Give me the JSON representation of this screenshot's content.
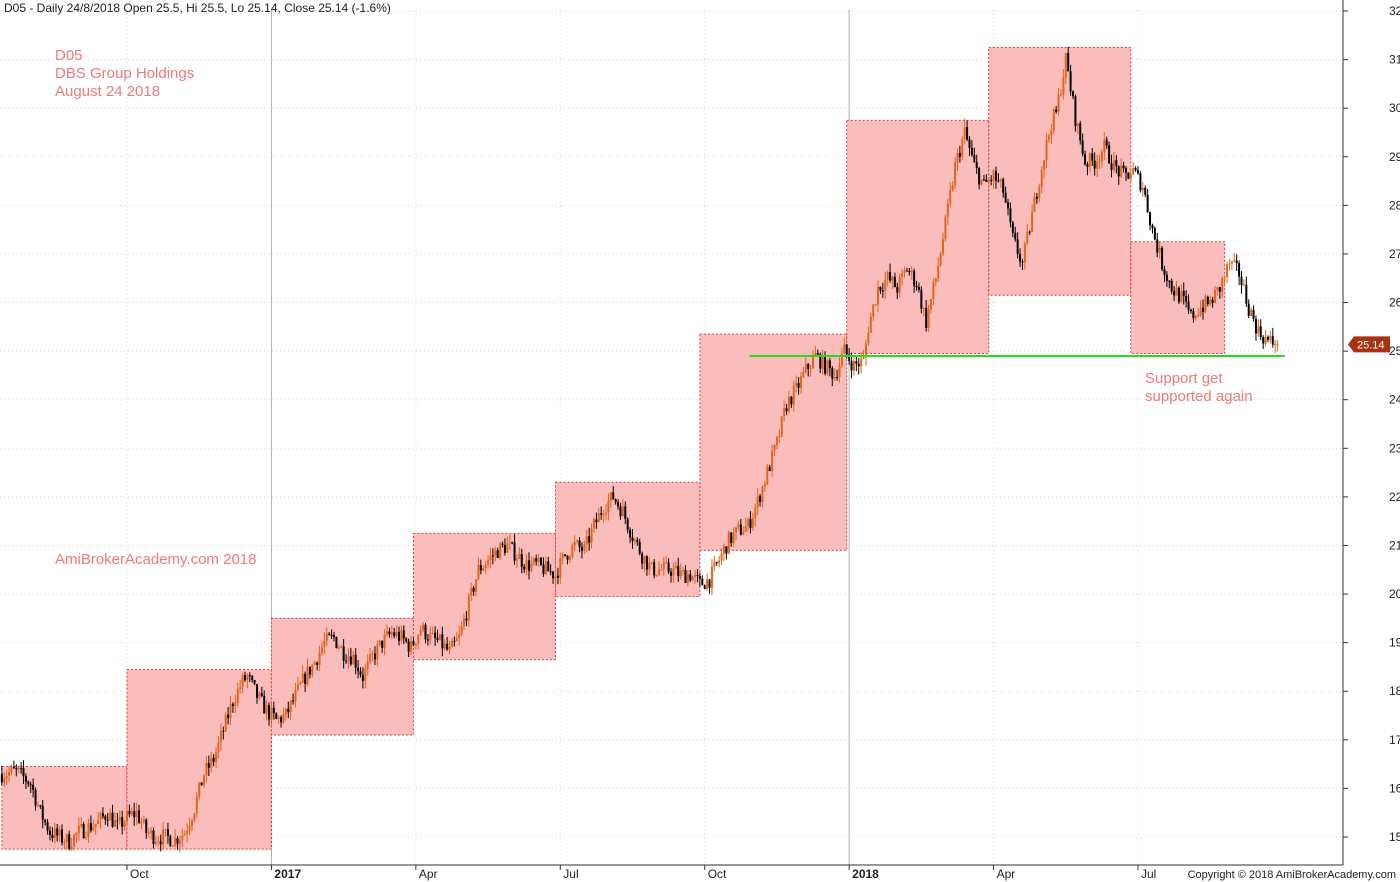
{
  "header": {
    "text": "D05 - Daily 24/8/2018 Open 25.5, Hi 25.5, Lo 25.14, Close 25.14 (-1.6%)"
  },
  "annotations": {
    "ticker": "D05",
    "company": "DBS Group Holdings",
    "date": "August 24 2018",
    "watermark": "AmiBrokerAcademy.com  2018",
    "support_line1": "Support get",
    "support_line2": "supported again"
  },
  "copyright": "Copyright © 2018 AmiBrokerAcademy.com",
  "colors": {
    "box_fill": "#fbbcbc",
    "box_stroke": "#d94040",
    "support_line": "#22dd22",
    "annotation": "#f07a7a",
    "up_candle": "#e2651c",
    "down_candle": "#000000",
    "last_price_badge": "#a83214"
  },
  "chart_data": {
    "type": "candlestick",
    "title": "",
    "xlabel": "",
    "ylabel": "",
    "ylim": [
      14.7,
      32.2
    ],
    "yticks": [
      15,
      16,
      17,
      18,
      19,
      20,
      21,
      22,
      23,
      24,
      25,
      26,
      27,
      28,
      29,
      30,
      31,
      32
    ],
    "x_tick_labels": [
      {
        "label": "Oct",
        "month": 3,
        "bold": false
      },
      {
        "label": "2017",
        "month": 6,
        "bold": true
      },
      {
        "label": "Apr",
        "month": 9,
        "bold": false
      },
      {
        "label": "Jul",
        "month": 12,
        "bold": false
      },
      {
        "label": "Oct",
        "month": 15,
        "bold": false
      },
      {
        "label": "2018",
        "month": 18,
        "bold": true
      },
      {
        "label": "Apr",
        "month": 21,
        "bold": false
      },
      {
        "label": "Jul",
        "month": 24,
        "bold": false
      }
    ],
    "x_domain_months": [
      0.4,
      28.4
    ],
    "last_price": "25.14",
    "last_price_value": 25.14,
    "support_level": 24.9,
    "support_range_months": [
      15.93,
      27.05
    ],
    "price_path": [
      [
        0.4,
        16.3
      ],
      [
        0.7,
        16.35
      ],
      [
        1.0,
        16.1
      ],
      [
        1.2,
        15.5
      ],
      [
        1.4,
        15.1
      ],
      [
        1.6,
        15.0
      ],
      [
        1.8,
        14.9
      ],
      [
        2.0,
        15.1
      ],
      [
        2.2,
        15.2
      ],
      [
        2.4,
        15.3
      ],
      [
        2.6,
        15.5
      ],
      [
        2.8,
        15.2
      ],
      [
        3.0,
        15.4
      ],
      [
        3.2,
        15.5
      ],
      [
        3.4,
        15.1
      ],
      [
        3.6,
        15.0
      ],
      [
        3.8,
        15.0
      ],
      [
        4.0,
        14.95
      ],
      [
        4.2,
        15.1
      ],
      [
        4.4,
        15.6
      ],
      [
        4.6,
        16.3
      ],
      [
        4.8,
        16.6
      ],
      [
        5.0,
        17.2
      ],
      [
        5.2,
        17.8
      ],
      [
        5.4,
        18.2
      ],
      [
        5.5,
        18.3
      ],
      [
        5.7,
        17.9
      ],
      [
        5.9,
        17.6
      ],
      [
        6.1,
        17.4
      ],
      [
        6.3,
        17.5
      ],
      [
        6.5,
        17.9
      ],
      [
        6.7,
        18.3
      ],
      [
        6.9,
        18.6
      ],
      [
        7.1,
        19.0
      ],
      [
        7.3,
        19.1
      ],
      [
        7.5,
        18.8
      ],
      [
        7.7,
        18.7
      ],
      [
        7.9,
        18.3
      ],
      [
        8.1,
        18.7
      ],
      [
        8.3,
        19.0
      ],
      [
        8.5,
        19.2
      ],
      [
        8.7,
        19.1
      ],
      [
        8.9,
        18.9
      ],
      [
        9.1,
        19.3
      ],
      [
        9.3,
        19.1
      ],
      [
        9.5,
        19.0
      ],
      [
        9.7,
        18.8
      ],
      [
        9.9,
        19.1
      ],
      [
        10.1,
        19.8
      ],
      [
        10.3,
        20.5
      ],
      [
        10.5,
        20.7
      ],
      [
        10.7,
        20.9
      ],
      [
        10.9,
        21.0
      ],
      [
        11.1,
        20.8
      ],
      [
        11.3,
        20.6
      ],
      [
        11.5,
        20.6
      ],
      [
        11.7,
        20.5
      ],
      [
        11.9,
        20.4
      ],
      [
        12.1,
        20.8
      ],
      [
        12.3,
        21.0
      ],
      [
        12.5,
        20.9
      ],
      [
        12.7,
        21.4
      ],
      [
        12.9,
        21.8
      ],
      [
        13.1,
        22.0
      ],
      [
        13.3,
        21.7
      ],
      [
        13.5,
        21.2
      ],
      [
        13.7,
        20.8
      ],
      [
        13.9,
        20.5
      ],
      [
        14.1,
        20.5
      ],
      [
        14.3,
        20.5
      ],
      [
        14.5,
        20.4
      ],
      [
        14.7,
        20.4
      ],
      [
        14.9,
        20.2
      ],
      [
        15.1,
        20.3
      ],
      [
        15.3,
        20.7
      ],
      [
        15.5,
        21.1
      ],
      [
        15.7,
        21.3
      ],
      [
        15.9,
        21.4
      ],
      [
        16.1,
        21.9
      ],
      [
        16.3,
        22.5
      ],
      [
        16.5,
        23.1
      ],
      [
        16.7,
        23.9
      ],
      [
        16.9,
        24.2
      ],
      [
        17.1,
        24.6
      ],
      [
        17.3,
        24.9
      ],
      [
        17.5,
        24.7
      ],
      [
        17.7,
        24.5
      ],
      [
        17.9,
        25.0
      ],
      [
        18.1,
        24.7
      ],
      [
        18.3,
        24.8
      ],
      [
        18.4,
        25.5
      ],
      [
        18.6,
        26.3
      ],
      [
        18.8,
        26.5
      ],
      [
        19.0,
        26.3
      ],
      [
        19.2,
        26.7
      ],
      [
        19.4,
        26.4
      ],
      [
        19.6,
        25.6
      ],
      [
        19.8,
        26.5
      ],
      [
        20.0,
        27.6
      ],
      [
        20.2,
        28.8
      ],
      [
        20.4,
        29.5
      ],
      [
        20.6,
        28.8
      ],
      [
        20.8,
        28.4
      ],
      [
        21.0,
        28.6
      ],
      [
        21.2,
        28.3
      ],
      [
        21.4,
        27.3
      ],
      [
        21.6,
        26.8
      ],
      [
        21.8,
        27.8
      ],
      [
        22.0,
        28.8
      ],
      [
        22.2,
        29.7
      ],
      [
        22.3,
        29.9
      ],
      [
        22.5,
        31.0
      ],
      [
        22.7,
        29.8
      ],
      [
        22.9,
        28.9
      ],
      [
        23.1,
        28.9
      ],
      [
        23.3,
        29.2
      ],
      [
        23.5,
        28.8
      ],
      [
        23.7,
        28.6
      ],
      [
        23.9,
        28.7
      ],
      [
        24.1,
        28.4
      ],
      [
        24.3,
        27.5
      ],
      [
        24.5,
        26.8
      ],
      [
        24.7,
        26.3
      ],
      [
        24.9,
        26.1
      ],
      [
        25.1,
        25.7
      ],
      [
        25.3,
        25.9
      ],
      [
        25.5,
        26.0
      ],
      [
        25.7,
        26.3
      ],
      [
        25.9,
        26.8
      ],
      [
        26.1,
        26.6
      ],
      [
        26.3,
        25.9
      ],
      [
        26.5,
        25.4
      ],
      [
        26.7,
        25.2
      ],
      [
        26.9,
        25.14
      ]
    ],
    "rectangles": [
      {
        "x0": 0.4,
        "x1": 3.0,
        "y_low": 14.75,
        "y_high": 16.45
      },
      {
        "x0": 3.0,
        "x1": 6.0,
        "y_low": 14.75,
        "y_high": 18.45
      },
      {
        "x0": 6.0,
        "x1": 8.95,
        "y_low": 17.1,
        "y_high": 19.5
      },
      {
        "x0": 8.95,
        "x1": 11.9,
        "y_low": 18.65,
        "y_high": 21.25
      },
      {
        "x0": 11.9,
        "x1": 14.9,
        "y_low": 19.95,
        "y_high": 22.3
      },
      {
        "x0": 14.9,
        "x1": 17.95,
        "y_low": 20.9,
        "y_high": 25.35
      },
      {
        "x0": 17.95,
        "x1": 20.9,
        "y_low": 24.95,
        "y_high": 29.75
      },
      {
        "x0": 20.9,
        "x1": 23.85,
        "y_low": 26.15,
        "y_high": 31.25
      },
      {
        "x0": 23.85,
        "x1": 25.8,
        "y_low": 24.95,
        "y_high": 27.25
      }
    ]
  }
}
